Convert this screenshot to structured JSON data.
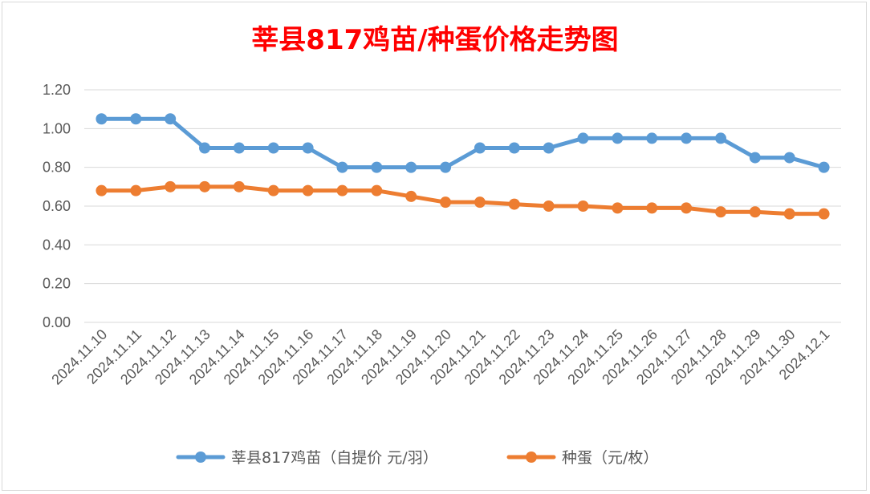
{
  "chart_data": {
    "type": "line",
    "title": "莘县817鸡苗/种蛋价格走势图",
    "categories": [
      "2024.11.10",
      "2024.11.11",
      "2024.11.12",
      "2024.11.13",
      "2024.11.14",
      "2024.11.15",
      "2024.11.16",
      "2024.11.17",
      "2024.11.18",
      "2024.11.19",
      "2024.11.20",
      "2024.11.21",
      "2024.11.22",
      "2024.11.23",
      "2024.11.24",
      "2024.11.25",
      "2024.11.26",
      "2024.11.27",
      "2024.11.28",
      "2024.11.29",
      "2024.11.30",
      "2024.12.1"
    ],
    "series": [
      {
        "name": "莘县817鸡苗（自提价 元/羽）",
        "color": "#5b9bd5",
        "values": [
          1.05,
          1.05,
          1.05,
          0.9,
          0.9,
          0.9,
          0.9,
          0.8,
          0.8,
          0.8,
          0.8,
          0.9,
          0.9,
          0.9,
          0.95,
          0.95,
          0.95,
          0.95,
          0.95,
          0.85,
          0.85,
          0.8
        ]
      },
      {
        "name": "种蛋（元/枚）",
        "color": "#ed7d31",
        "values": [
          0.68,
          0.68,
          0.7,
          0.7,
          0.7,
          0.68,
          0.68,
          0.68,
          0.68,
          0.65,
          0.62,
          0.62,
          0.61,
          0.6,
          0.6,
          0.59,
          0.59,
          0.59,
          0.57,
          0.57,
          0.56,
          0.56
        ]
      }
    ],
    "y_ticks": [
      "0.00",
      "0.20",
      "0.40",
      "0.60",
      "0.80",
      "1.00",
      "1.20"
    ],
    "ylim": [
      0,
      1.2
    ],
    "grid": true,
    "legend_position": "bottom"
  }
}
